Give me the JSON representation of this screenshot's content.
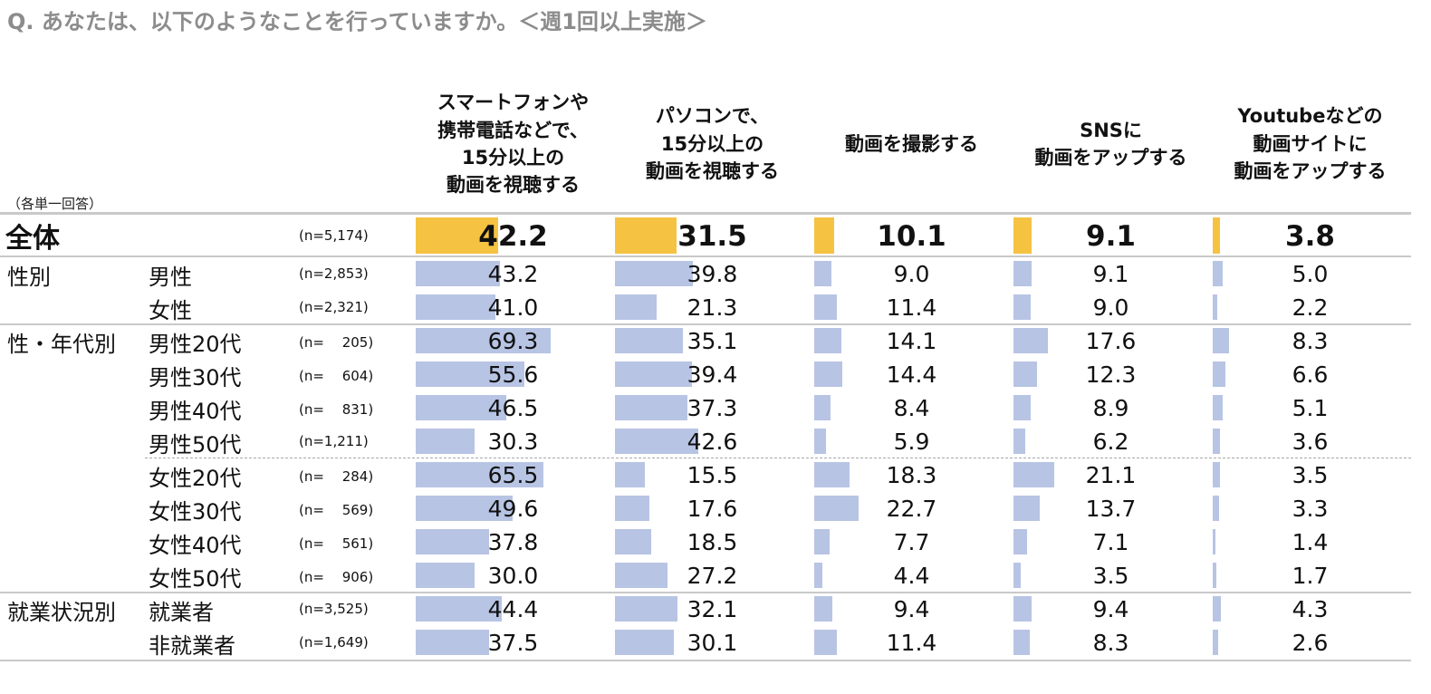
{
  "question": "Q.  あなたは、以下のようなことを行っていますか。＜週1回以上実施＞",
  "note": "（各単一回答）",
  "colors": {
    "total_bar": "#f5c242",
    "bar": "#b8c4e4",
    "rule": "#c9c9c9"
  },
  "chart_data": {
    "type": "bar",
    "orientation": "horizontal",
    "unit": "%",
    "xlim": [
      0,
      100
    ],
    "columns": [
      "スマートフォンや\n携帯電話などで、\n15分以上の\n動画を視聴する",
      "パソコンで、\n15分以上の\n動画を視聴する",
      "動画を撮影する",
      "SNSに\n動画をアップする",
      "Youtubeなどの\n動画サイトに\n動画をアップする"
    ],
    "total": {
      "label": "全体",
      "n": "(n=5,174)",
      "values": [
        42.2,
        31.5,
        10.1,
        9.1,
        3.8
      ]
    },
    "rows": [
      {
        "group": "性別",
        "label": "男性",
        "n": "(n=2,853)",
        "values": [
          43.2,
          39.8,
          9.0,
          9.1,
          5.0
        ]
      },
      {
        "group": "",
        "label": "女性",
        "n": "(n=2,321)",
        "values": [
          41.0,
          21.3,
          11.4,
          9.0,
          2.2
        ]
      },
      {
        "group": "性・年代別",
        "label": "男性20代",
        "n": "(n=　 205)",
        "values": [
          69.3,
          35.1,
          14.1,
          17.6,
          8.3
        ]
      },
      {
        "group": "",
        "label": "男性30代",
        "n": "(n=　 604)",
        "values": [
          55.6,
          39.4,
          14.4,
          12.3,
          6.6
        ]
      },
      {
        "group": "",
        "label": "男性40代",
        "n": "(n=　 831)",
        "values": [
          46.5,
          37.3,
          8.4,
          8.9,
          5.1
        ]
      },
      {
        "group": "",
        "label": "男性50代",
        "n": "(n=1,211)",
        "values": [
          30.3,
          42.6,
          5.9,
          6.2,
          3.6
        ]
      },
      {
        "group": "",
        "label": "女性20代",
        "n": "(n=　 284)",
        "values": [
          65.5,
          15.5,
          18.3,
          21.1,
          3.5
        ]
      },
      {
        "group": "",
        "label": "女性30代",
        "n": "(n=　 569)",
        "values": [
          49.6,
          17.6,
          22.7,
          13.7,
          3.3
        ]
      },
      {
        "group": "",
        "label": "女性40代",
        "n": "(n=　 561)",
        "values": [
          37.8,
          18.5,
          7.7,
          7.1,
          1.4
        ]
      },
      {
        "group": "",
        "label": "女性50代",
        "n": "(n=　 906)",
        "values": [
          30.0,
          27.2,
          4.4,
          3.5,
          1.7
        ]
      },
      {
        "group": "就業状況別",
        "label": "就業者",
        "n": "(n=3,525)",
        "values": [
          44.4,
          32.1,
          9.4,
          9.4,
          4.3
        ]
      },
      {
        "group": "",
        "label": "非就業者",
        "n": "(n=1,649)",
        "values": [
          37.5,
          30.1,
          11.4,
          8.3,
          2.6
        ]
      }
    ]
  }
}
